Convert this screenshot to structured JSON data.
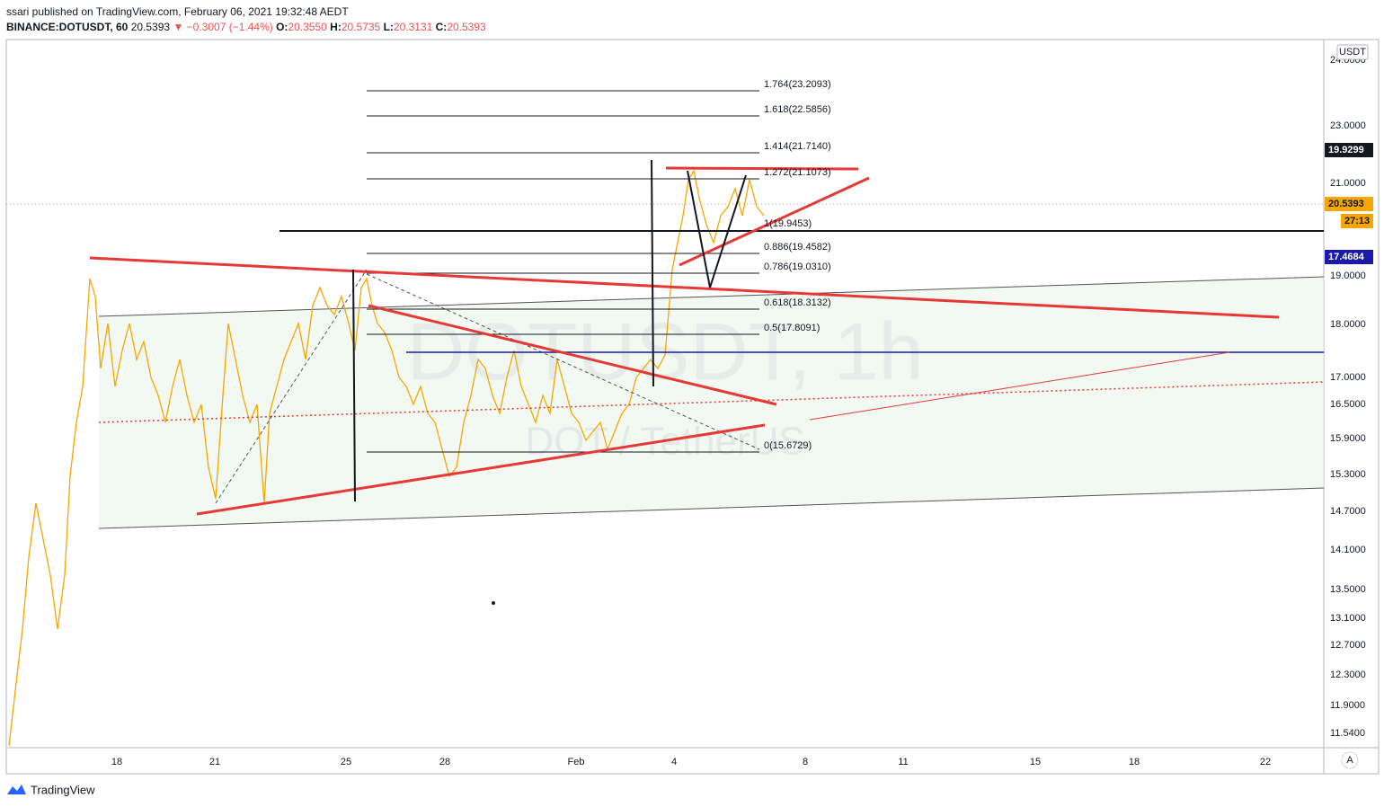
{
  "header": {
    "publisher": "ssari published on TradingView.com, February 06, 2021 19:32:48 AEDT",
    "symbol": "BINANCE:DOTUSDT, 60",
    "last": "20.5393",
    "change": "−0.3007 (−1.44%)",
    "open_label": "O:",
    "open": "20.3550",
    "high_label": "H:",
    "high": "20.5735",
    "low_label": "L:",
    "low": "20.3131",
    "close_label": "C:",
    "close": "20.5393"
  },
  "price_axis": {
    "currency": "USDT",
    "labels": [
      "24.0000",
      "23.0000",
      "21.0000",
      "19.0000",
      "18.0000",
      "17.0000",
      "16.5000",
      "15.9000",
      "15.3000",
      "14.7000",
      "14.1000",
      "13.5000",
      "13.1000",
      "12.7000",
      "12.3000",
      "11.9000",
      "11.5400"
    ],
    "badges": [
      "19.9299",
      "20.5393",
      "27:13",
      "17.4684"
    ]
  },
  "time_axis": {
    "labels": [
      "18",
      "21",
      "25",
      "28",
      "Feb",
      "4",
      "8",
      "11",
      "15",
      "18",
      "22"
    ],
    "corner": "A"
  },
  "fib_labels": [
    "1.764(23.2093)",
    "1.618(22.5856)",
    "1.414(21.7140)",
    "1.272(21.1073)",
    "1(19.9453)",
    "0.886(19.4582)",
    "0.786(19.0310)",
    "0.618(18.3132)",
    "0.5(17.8091)",
    "0(15.6729)"
  ],
  "watermark": {
    "title": "DOTUSDT, 1h",
    "subtitle": "DOT / TetherUS"
  },
  "footer": {
    "brand": "TradingView"
  }
}
